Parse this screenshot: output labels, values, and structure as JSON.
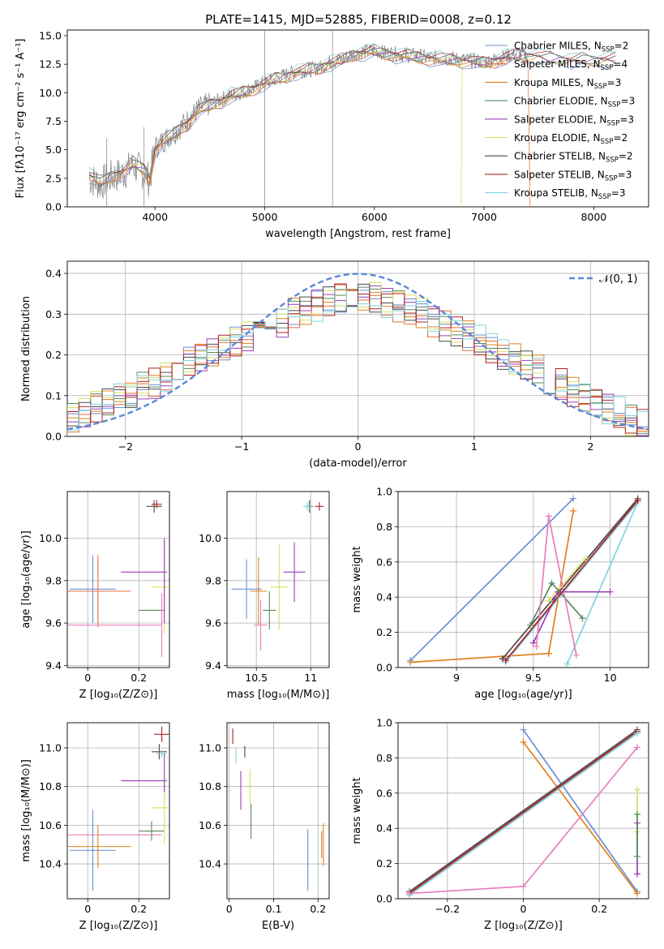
{
  "figure_title": "PLATE=1415, MJD=52885, FIBERID=0008, z=0.12",
  "legend_entries": [
    {
      "label": "Chabrier MILES, N",
      "sub": "SSP",
      "suffix": "=2",
      "color": "#6a8fd6"
    },
    {
      "label": "Salpeter MILES, N",
      "sub": "SSP",
      "suffix": "=4",
      "color": "#e36f3c"
    },
    {
      "label": "Kroupa MILES, N",
      "sub": "SSP",
      "suffix": "=3",
      "color": "#e0801f"
    },
    {
      "label": "Chabrier ELODIE, N",
      "sub": "SSP",
      "suffix": "=3",
      "color": "#5a8a5e"
    },
    {
      "label": "Salpeter ELODIE, N",
      "sub": "SSP",
      "suffix": "=3",
      "color": "#9b3fb5"
    },
    {
      "label": "Kroupa ELODIE, N",
      "sub": "SSP",
      "suffix": "=2",
      "color": "#d8e060"
    },
    {
      "label": "Chabrier STELIB, N",
      "sub": "SSP",
      "suffix": "=2",
      "color": "#4a4a4a"
    },
    {
      "label": "Salpeter STELIB, N",
      "sub": "SSP",
      "suffix": "=3",
      "color": "#b02020"
    },
    {
      "label": "Kroupa STELIB, N",
      "sub": "SSP",
      "suffix": "=3",
      "color": "#7fd3dd"
    }
  ],
  "chart_data": [
    {
      "id": "spectrum",
      "type": "line",
      "xlabel": "wavelength [Angstrom, rest frame]",
      "ylabel": "Flux [fλ10⁻¹⁷ erg cm⁻² s⁻¹ A⁻¹]",
      "xlim": [
        3200,
        8500
      ],
      "ylim": [
        0,
        15.5
      ],
      "xticks": [
        4000,
        5000,
        6000,
        7000,
        8000
      ],
      "yticks": [
        0.0,
        2.5,
        5.0,
        7.5,
        10.0,
        12.5,
        15.0
      ],
      "data_color": "#808080",
      "data_points": [
        [
          3400,
          2.5
        ],
        [
          3500,
          2.0
        ],
        [
          3600,
          2.6
        ],
        [
          3700,
          2.9
        ],
        [
          3800,
          3.6
        ],
        [
          3900,
          3.0
        ],
        [
          3950,
          2.3
        ],
        [
          4000,
          5.2
        ],
        [
          4100,
          6.0
        ],
        [
          4200,
          6.7
        ],
        [
          4300,
          7.6
        ],
        [
          4400,
          8.6
        ],
        [
          4500,
          9.0
        ],
        [
          4600,
          9.4
        ],
        [
          4700,
          9.8
        ],
        [
          4800,
          10.1
        ],
        [
          4900,
          10.4
        ],
        [
          5000,
          10.8
        ],
        [
          5100,
          11.2
        ],
        [
          5200,
          11.6
        ],
        [
          5300,
          11.9
        ],
        [
          5400,
          12.0
        ],
        [
          5500,
          12.2
        ],
        [
          5600,
          12.7
        ],
        [
          5700,
          12.9
        ],
        [
          5800,
          13.4
        ],
        [
          5900,
          13.6
        ],
        [
          6000,
          13.7
        ],
        [
          6100,
          13.5
        ],
        [
          6200,
          13.4
        ],
        [
          6300,
          13.3
        ],
        [
          6400,
          13.2
        ],
        [
          6500,
          13.1
        ],
        [
          6600,
          13.0
        ],
        [
          6700,
          13.0
        ],
        [
          6800,
          12.9
        ],
        [
          6900,
          12.8
        ],
        [
          7000,
          12.7
        ],
        [
          7100,
          12.9
        ],
        [
          7200,
          13.2
        ],
        [
          7300,
          13.4
        ],
        [
          7400,
          13.3
        ]
      ],
      "model_points": [
        [
          3400,
          2.8
        ],
        [
          3500,
          2.1
        ],
        [
          3600,
          2.7
        ],
        [
          3700,
          3.0
        ],
        [
          3800,
          3.8
        ],
        [
          3900,
          3.3
        ],
        [
          3950,
          2.5
        ],
        [
          4000,
          5.0
        ],
        [
          4100,
          5.9
        ],
        [
          4200,
          6.6
        ],
        [
          4300,
          7.4
        ],
        [
          4400,
          8.4
        ],
        [
          4500,
          8.9
        ],
        [
          4600,
          9.3
        ],
        [
          4700,
          9.7
        ],
        [
          4800,
          10.0
        ],
        [
          4900,
          10.4
        ],
        [
          5000,
          10.8
        ],
        [
          5100,
          11.2
        ],
        [
          5200,
          11.5
        ],
        [
          5300,
          11.8
        ],
        [
          5400,
          12.0
        ],
        [
          5500,
          12.2
        ],
        [
          5600,
          12.6
        ],
        [
          5700,
          12.8
        ],
        [
          5800,
          13.3
        ],
        [
          5900,
          13.5
        ],
        [
          6000,
          13.6
        ],
        [
          6100,
          13.4
        ],
        [
          6200,
          13.3
        ],
        [
          6300,
          13.2
        ],
        [
          6400,
          13.1
        ],
        [
          6500,
          13.0
        ],
        [
          6600,
          12.9
        ],
        [
          6700,
          12.9
        ],
        [
          6800,
          12.8
        ],
        [
          6900,
          12.7
        ],
        [
          7000,
          12.6
        ],
        [
          7100,
          12.8
        ],
        [
          7200,
          13.1
        ],
        [
          7300,
          13.3
        ],
        [
          7400,
          13.2
        ],
        [
          7500,
          13.2
        ],
        [
          7600,
          13.0
        ],
        [
          7700,
          12.9
        ],
        [
          7800,
          12.8
        ],
        [
          7900,
          12.9
        ],
        [
          8000,
          12.8
        ],
        [
          8100,
          12.9
        ],
        [
          8200,
          12.9
        ]
      ]
    },
    {
      "id": "residual_hist",
      "type": "histogram",
      "xlabel": "(data-model)/error",
      "ylabel": "Normed distribution",
      "xlim": [
        -2.5,
        2.5
      ],
      "ylim": [
        0,
        0.43
      ],
      "xticks": [
        -2,
        -1,
        0,
        1,
        2
      ],
      "yticks": [
        0.0,
        0.1,
        0.2,
        0.3,
        0.4
      ],
      "gaussian_label": "𝒩(0, 1)",
      "gaussian_color": "#5b87d6",
      "bin_width": 0.1,
      "bin_start": -2.5,
      "bin_heights": [
        0.05,
        0.06,
        0.07,
        0.08,
        0.09,
        0.11,
        0.12,
        0.13,
        0.15,
        0.16,
        0.18,
        0.19,
        0.21,
        0.22,
        0.23,
        0.25,
        0.26,
        0.27,
        0.28,
        0.3,
        0.31,
        0.32,
        0.33,
        0.34,
        0.35,
        0.35,
        0.34,
        0.33,
        0.32,
        0.31,
        0.3,
        0.28,
        0.27,
        0.26,
        0.25,
        0.24,
        0.22,
        0.2,
        0.19,
        0.17,
        0.16,
        0.14,
        0.13,
        0.11,
        0.1,
        0.08,
        0.07,
        0.06,
        0.04,
        0.03
      ]
    },
    {
      "id": "age_vs_Z",
      "type": "errorbar",
      "xlabel": "Z [log₁₀(Z/Z⊙)]",
      "ylabel": "age  [log₁₀(age/yr)]",
      "xlim": [
        -0.08,
        0.32
      ],
      "ylim": [
        9.39,
        10.22
      ],
      "xticks": [
        0.0,
        0.2
      ],
      "yticks": [
        9.4,
        9.6,
        9.8,
        10.0
      ]
    },
    {
      "id": "age_vs_mass",
      "type": "errorbar",
      "xlabel": "mass [log₁₀(M/M⊙)]",
      "ylabel": "",
      "xlim": [
        10.23,
        11.17
      ],
      "ylim": [
        9.39,
        10.22
      ],
      "xticks": [
        10.5,
        11.0
      ],
      "yticks": [
        9.4,
        9.6,
        9.8,
        10.0
      ]
    },
    {
      "id": "weight_vs_age",
      "type": "line",
      "xlabel": "age  [log₁₀(age/yr)]",
      "ylabel": "mass weight",
      "xlim": [
        8.62,
        10.25
      ],
      "ylim": [
        0,
        1
      ],
      "xticks": [
        9.0,
        9.5,
        10.0
      ],
      "yticks": [
        0.0,
        0.2,
        0.4,
        0.6,
        0.8,
        1.0
      ]
    },
    {
      "id": "mass_vs_Z",
      "type": "errorbar",
      "xlabel": "Z [log₁₀(Z/Z⊙)]",
      "ylabel": "mass [log₁₀(M/M⊙)]",
      "xlim": [
        -0.08,
        0.32
      ],
      "ylim": [
        10.22,
        11.13
      ],
      "xticks": [
        0.0,
        0.2
      ],
      "yticks": [
        10.4,
        10.6,
        10.8,
        11.0
      ]
    },
    {
      "id": "mass_vs_ebv",
      "type": "errorbar",
      "xlabel": "E(B-V)",
      "ylabel": "",
      "xlim": [
        -0.005,
        0.225
      ],
      "ylim": [
        10.22,
        11.13
      ],
      "xticks": [
        0.0,
        0.1,
        0.2
      ],
      "yticks": [
        10.4,
        10.6,
        10.8,
        11.0
      ]
    },
    {
      "id": "weight_vs_Z",
      "type": "line",
      "xlabel": "Z [log₁₀(Z/Z⊙)]",
      "ylabel": "mass weight",
      "xlim": [
        -0.33,
        0.33
      ],
      "ylim": [
        0,
        1
      ],
      "xticks": [
        -0.2,
        0.0,
        0.2
      ],
      "yticks": [
        0.0,
        0.2,
        0.4,
        0.6,
        0.8,
        1.0
      ]
    }
  ]
}
